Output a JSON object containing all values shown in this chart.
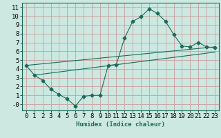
{
  "xlabel": "Humidex (Indice chaleur)",
  "ylabel": "",
  "bg_color": "#cce8e0",
  "grid_color": "#c8a0a0",
  "line_color": "#1a6b5a",
  "xlim": [
    -0.5,
    23.5
  ],
  "ylim": [
    -0.7,
    11.5
  ],
  "xticks": [
    0,
    1,
    2,
    3,
    4,
    5,
    6,
    7,
    8,
    9,
    10,
    11,
    12,
    13,
    14,
    15,
    16,
    17,
    18,
    19,
    20,
    21,
    22,
    23
  ],
  "yticks": [
    0,
    1,
    2,
    3,
    4,
    5,
    6,
    7,
    8,
    9,
    10,
    11
  ],
  "ytick_labels": [
    "-0",
    "1",
    "2",
    "3",
    "4",
    "5",
    "6",
    "7",
    "8",
    "9",
    "10",
    "11"
  ],
  "curve_x": [
    0,
    1,
    2,
    3,
    4,
    5,
    6,
    7,
    8,
    9,
    10,
    11,
    12,
    13,
    14,
    15,
    16,
    17,
    18,
    19,
    20,
    21,
    22,
    23
  ],
  "curve_y": [
    4.4,
    3.3,
    2.7,
    1.7,
    1.1,
    0.6,
    -0.2,
    0.9,
    1.0,
    1.0,
    4.4,
    4.5,
    7.5,
    9.4,
    9.9,
    10.8,
    10.3,
    9.4,
    7.9,
    6.6,
    6.5,
    7.0,
    6.5,
    6.4
  ],
  "line1_x": [
    0,
    23
  ],
  "line1_y": [
    4.4,
    6.5
  ],
  "line2_x": [
    1,
    23
  ],
  "line2_y": [
    3.3,
    5.9
  ],
  "marker": "D",
  "marker_size": 2.5,
  "font_size": 6.5
}
